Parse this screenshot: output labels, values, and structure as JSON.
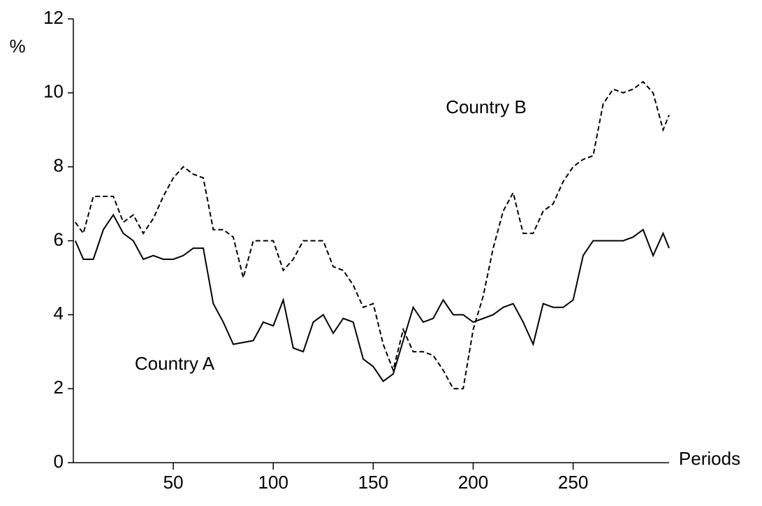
{
  "chart_data": {
    "type": "line",
    "y_label": "%",
    "x_label": "Periods",
    "annotations": [
      "Country A",
      "Country B"
    ],
    "x": [
      1,
      5,
      10,
      15,
      20,
      25,
      30,
      35,
      40,
      45,
      50,
      55,
      60,
      65,
      70,
      75,
      80,
      85,
      90,
      95,
      100,
      105,
      110,
      115,
      120,
      125,
      130,
      135,
      140,
      145,
      150,
      155,
      160,
      165,
      170,
      175,
      180,
      185,
      190,
      195,
      200,
      205,
      210,
      215,
      220,
      225,
      230,
      235,
      240,
      245,
      250,
      255,
      260,
      265,
      270,
      275,
      280,
      285,
      290,
      295,
      298
    ],
    "series": [
      {
        "name": "Country A",
        "color": "#000000",
        "line_style": "solid",
        "values": [
          6.0,
          5.5,
          5.5,
          6.3,
          6.7,
          6.2,
          6.0,
          5.5,
          5.6,
          5.5,
          5.5,
          5.6,
          5.8,
          5.8,
          4.3,
          3.8,
          3.2,
          3.25,
          3.3,
          3.8,
          3.7,
          4.4,
          3.1,
          3.0,
          3.8,
          4.0,
          3.5,
          3.9,
          3.8,
          2.8,
          2.6,
          2.2,
          2.4,
          3.3,
          4.2,
          3.8,
          3.9,
          4.4,
          4.0,
          4.0,
          3.8,
          3.9,
          4.0,
          4.2,
          4.3,
          3.8,
          3.2,
          4.3,
          4.2,
          4.2,
          4.4,
          5.6,
          6.0,
          6.0,
          6.0,
          6.0,
          6.1,
          6.3,
          5.6,
          6.2,
          5.8
        ]
      },
      {
        "name": "Country B",
        "color": "#000000",
        "line_style": "dashed",
        "values": [
          6.5,
          6.2,
          7.2,
          7.2,
          7.2,
          6.5,
          6.7,
          6.2,
          6.6,
          7.2,
          7.7,
          8.0,
          7.8,
          7.7,
          6.3,
          6.3,
          6.1,
          5.0,
          6.0,
          6.0,
          6.0,
          5.2,
          5.5,
          6.0,
          6.0,
          6.0,
          5.3,
          5.2,
          4.8,
          4.2,
          4.3,
          3.2,
          2.5,
          3.6,
          3.0,
          3.0,
          2.9,
          2.5,
          2.0,
          2.0,
          3.6,
          4.5,
          5.8,
          6.8,
          7.3,
          6.2,
          6.2,
          6.8,
          7.0,
          7.6,
          8.0,
          8.2,
          8.3,
          9.7,
          10.1,
          10.0,
          10.1,
          10.3,
          10.0,
          9.0,
          9.4
        ]
      }
    ],
    "xlim": [
      0,
      298
    ],
    "xticks": [
      50,
      100,
      150,
      200,
      250
    ],
    "ylim": [
      0,
      12
    ],
    "yticks": [
      0,
      2,
      4,
      6,
      8,
      10,
      12
    ],
    "grid": false
  }
}
